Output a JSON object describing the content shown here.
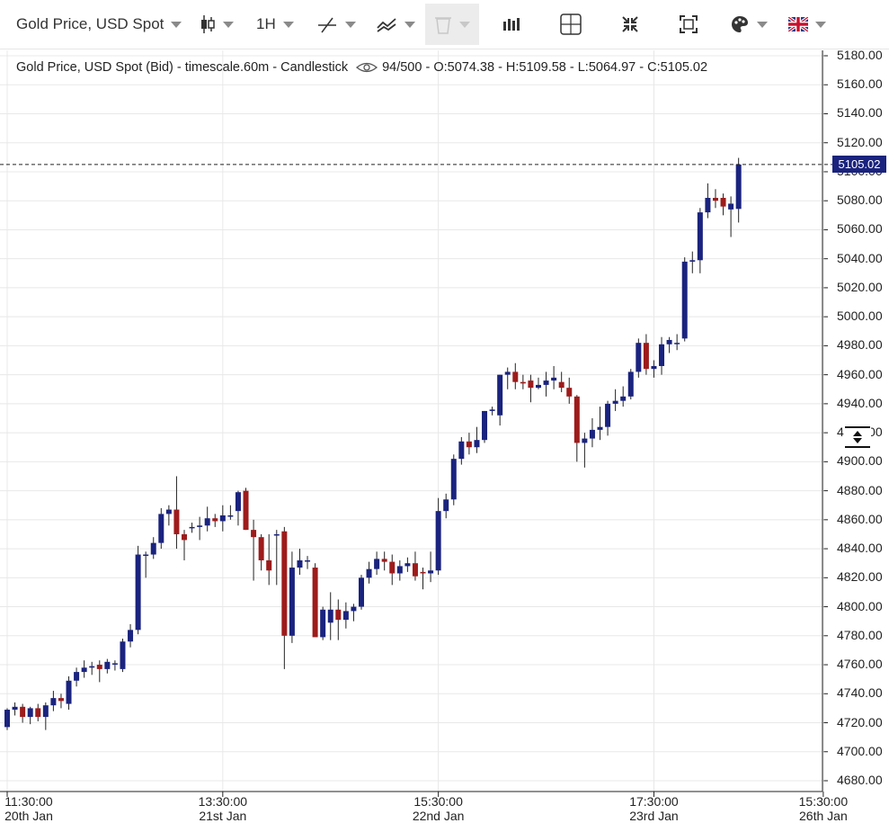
{
  "toolbar": {
    "instrument": "Gold Price, USD Spot",
    "timeframe": "1H",
    "icons": [
      "candlestick-icon",
      "trend-line-icon",
      "indicator-icon",
      "delete-icon",
      "bar-chart-icon",
      "crosshair-icon",
      "fit-icon",
      "fullscreen-icon",
      "palette-icon",
      "uk-flag-icon"
    ]
  },
  "legend": {
    "title": "Gold Price, USD Spot (Bid) - timescale.60m - Candlestick",
    "count": "94/500",
    "ohlc": "- O:5074.38 - H:5109.58 - L:5064.97 - C:5105.02"
  },
  "price_badge": "5105.02",
  "colors": {
    "up": "#1a237e",
    "down": "#9e1b1b",
    "grid": "#e8e8e8",
    "badge": "#1a237e"
  },
  "chart_data": {
    "type": "candlestick",
    "y_ticks": [
      "5180.00",
      "5160.00",
      "5140.00",
      "5120.00",
      "5100.00",
      "5080.00",
      "5060.00",
      "5040.00",
      "5020.00",
      "5000.00",
      "4980.00",
      "4960.00",
      "4940.00",
      "4920.00",
      "4900.00",
      "4880.00",
      "4860.00",
      "4840.00",
      "4820.00",
      "4800.00",
      "4780.00",
      "4760.00",
      "4740.00",
      "4720.00",
      "4700.00",
      "4680.00"
    ],
    "ylim": [
      4680,
      5180
    ],
    "last_close": 5105.02,
    "x_labels": [
      {
        "time": "11:30:00",
        "date": "20th Jan",
        "index": 0
      },
      {
        "time": "13:30:00",
        "date": "21st Jan",
        "index": 28
      },
      {
        "time": "15:30:00",
        "date": "22nd Jan",
        "index": 56
      },
      {
        "time": "17:30:00",
        "date": "23rd Jan",
        "index": 84
      },
      {
        "time": "15:30:00",
        "date": "26th Jan",
        "index": 106
      }
    ],
    "candles": [
      [
        4717,
        4730,
        4715,
        4729
      ],
      [
        4729,
        4734,
        4725,
        4731
      ],
      [
        4731,
        4733,
        4720,
        4724
      ],
      [
        4724,
        4731,
        4719,
        4730
      ],
      [
        4730,
        4733,
        4721,
        4724
      ],
      [
        4724,
        4734,
        4715,
        4732
      ],
      [
        4732,
        4742,
        4728,
        4737
      ],
      [
        4737,
        4740,
        4730,
        4735
      ],
      [
        4733,
        4752,
        4729,
        4749
      ],
      [
        4749,
        4758,
        4745,
        4755
      ],
      [
        4755,
        4763,
        4751,
        4758
      ],
      [
        4758,
        4762,
        4753,
        4759
      ],
      [
        4760,
        4763,
        4748,
        4757
      ],
      [
        4757,
        4764,
        4754,
        4762
      ],
      [
        4761,
        4763,
        4756,
        4761
      ],
      [
        4757,
        4778,
        4755,
        4776
      ],
      [
        4776,
        4788,
        4772,
        4784
      ],
      [
        4784,
        4842,
        4781,
        4836
      ],
      [
        4836,
        4838,
        4820,
        4836
      ],
      [
        4836,
        4848,
        4833,
        4844
      ],
      [
        4844,
        4868,
        4840,
        4864
      ],
      [
        4864,
        4870,
        4856,
        4867
      ],
      [
        4867,
        4890,
        4840,
        4850
      ],
      [
        4850,
        4853,
        4832,
        4846
      ],
      [
        4855,
        4858,
        4851,
        4855
      ],
      [
        4855,
        4862,
        4846,
        4856
      ],
      [
        4856,
        4869,
        4852,
        4861
      ],
      [
        4861,
        4864,
        4855,
        4859
      ],
      [
        4859,
        4870,
        4852,
        4863
      ],
      [
        4863,
        4870,
        4860,
        4863
      ],
      [
        4866,
        4880,
        4856,
        4879
      ],
      [
        4880,
        4882,
        4853,
        4853
      ],
      [
        4853,
        4860,
        4818,
        4848
      ],
      [
        4848,
        4850,
        4825,
        4832
      ],
      [
        4832,
        4850,
        4815,
        4825
      ],
      [
        4850,
        4853,
        4815,
        4850
      ],
      [
        4852,
        4855,
        4757,
        4780
      ],
      [
        4780,
        4838,
        4775,
        4827
      ],
      [
        4827,
        4840,
        4822,
        4832
      ],
      [
        4832,
        4835,
        4826,
        4832
      ],
      [
        4827,
        4830,
        4780,
        4779
      ],
      [
        4779,
        4800,
        4777,
        4798
      ],
      [
        4789,
        4810,
        4777,
        4798
      ],
      [
        4798,
        4805,
        4777,
        4791
      ],
      [
        4791,
        4803,
        4785,
        4797
      ],
      [
        4797,
        4802,
        4790,
        4800
      ],
      [
        4800,
        4822,
        4798,
        4820
      ],
      [
        4820,
        4831,
        4816,
        4826
      ],
      [
        4826,
        4838,
        4822,
        4833
      ],
      [
        4833,
        4838,
        4825,
        4831
      ],
      [
        4831,
        4836,
        4815,
        4823
      ],
      [
        4823,
        4832,
        4818,
        4828
      ],
      [
        4828,
        4834,
        4824,
        4830
      ],
      [
        4830,
        4838,
        4818,
        4821
      ],
      [
        4824,
        4827,
        4812,
        4823
      ],
      [
        4823,
        4838,
        4817,
        4825
      ],
      [
        4825,
        4875,
        4822,
        4866
      ],
      [
        4866,
        4878,
        4861,
        4874
      ],
      [
        4874,
        4905,
        4870,
        4902
      ],
      [
        4902,
        4917,
        4898,
        4914
      ],
      [
        4914,
        4920,
        4905,
        4910
      ],
      [
        4910,
        4924,
        4906,
        4915
      ],
      [
        4915,
        4935,
        4913,
        4935
      ],
      [
        4935,
        4938,
        4932,
        4936
      ],
      [
        4932,
        4960,
        4925,
        4960
      ],
      [
        4960,
        4965,
        4950,
        4962
      ],
      [
        4962,
        4968,
        4950,
        4955
      ],
      [
        4955,
        4960,
        4950,
        4954
      ],
      [
        4956,
        4960,
        4941,
        4951
      ],
      [
        4951,
        4958,
        4950,
        4953
      ],
      [
        4953,
        4962,
        4945,
        4956
      ],
      [
        4956,
        4966,
        4950,
        4958
      ],
      [
        4955,
        4962,
        4948,
        4951
      ],
      [
        4951,
        4958,
        4940,
        4945
      ],
      [
        4945,
        4946,
        4900,
        4913
      ],
      [
        4913,
        4920,
        4896,
        4916
      ],
      [
        4916,
        4930,
        4910,
        4922
      ],
      [
        4922,
        4938,
        4915,
        4924
      ],
      [
        4924,
        4942,
        4918,
        4940
      ],
      [
        4940,
        4950,
        4935,
        4942
      ],
      [
        4942,
        4952,
        4938,
        4945
      ],
      [
        4945,
        4964,
        4943,
        4962
      ],
      [
        4962,
        4985,
        4958,
        4982
      ],
      [
        4982,
        4988,
        4960,
        4964
      ],
      [
        4964,
        4970,
        4958,
        4966
      ],
      [
        4966,
        4986,
        4960,
        4981
      ],
      [
        4981,
        4986,
        4975,
        4984
      ],
      [
        4982,
        4988,
        4977,
        4982
      ],
      [
        4985,
        5041,
        4983,
        5038
      ],
      [
        5038,
        5045,
        5030,
        5039
      ],
      [
        5039,
        5075,
        5030,
        5072
      ],
      [
        5072,
        5092,
        5068,
        5082
      ],
      [
        5082,
        5088,
        5075,
        5080
      ],
      [
        5082,
        5085,
        5070,
        5076
      ],
      [
        5074,
        5083,
        5055,
        5078
      ],
      [
        5074.38,
        5109.58,
        5064.97,
        5105.02
      ]
    ]
  }
}
